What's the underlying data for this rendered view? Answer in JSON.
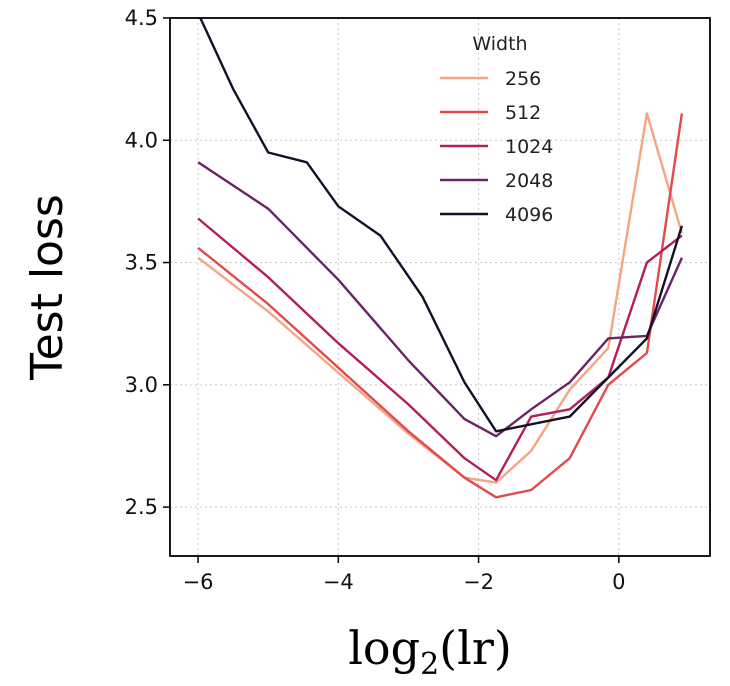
{
  "chart_data": {
    "type": "line",
    "title": "",
    "xlabel_base": "log",
    "xlabel_sub": "2",
    "xlabel_arg": "(lr)",
    "ylabel": "Test loss",
    "xlim": [
      -6.4,
      1.3
    ],
    "ylim": [
      2.3,
      4.5
    ],
    "xticks": [
      -6,
      -4,
      -2,
      0
    ],
    "xtick_labels": [
      "−6",
      "−4",
      "−2",
      "0"
    ],
    "yticks": [
      2.5,
      3.0,
      3.5,
      4.0,
      4.5
    ],
    "ytick_labels": [
      "2.5",
      "3.0",
      "3.5",
      "4.0",
      "4.5"
    ],
    "grid": true,
    "legend": {
      "title": "Width",
      "location": "top-right"
    },
    "series": [
      {
        "name": "256",
        "color": "#f4a582",
        "x": [
          -6,
          -5,
          -4,
          -3,
          -2.2,
          -1.75,
          -1.25,
          -0.7,
          -0.15,
          0.4,
          0.9
        ],
        "y": [
          3.52,
          3.3,
          3.05,
          2.8,
          2.62,
          2.6,
          2.73,
          2.98,
          3.15,
          4.11,
          3.62
        ]
      },
      {
        "name": "512",
        "color": "#e34a4a",
        "x": [
          -6,
          -5,
          -4,
          -3,
          -2.2,
          -1.75,
          -1.25,
          -0.7,
          -0.15,
          0.4,
          0.9
        ],
        "y": [
          3.56,
          3.33,
          3.07,
          2.81,
          2.62,
          2.54,
          2.57,
          2.7,
          3.0,
          3.13,
          4.11
        ]
      },
      {
        "name": "1024",
        "color": "#b41e5a",
        "x": [
          -6,
          -5,
          -4,
          -3,
          -2.2,
          -1.75,
          -1.25,
          -0.7,
          -0.15,
          0.4,
          0.9
        ],
        "y": [
          3.68,
          3.44,
          3.17,
          2.92,
          2.7,
          2.61,
          2.87,
          2.9,
          3.03,
          3.5,
          3.61
        ]
      },
      {
        "name": "2048",
        "color": "#6a2464",
        "x": [
          -6,
          -5,
          -4,
          -3,
          -2.2,
          -1.75,
          -1.25,
          -0.7,
          -0.15,
          0.4,
          0.9
        ],
        "y": [
          3.91,
          3.72,
          3.43,
          3.1,
          2.86,
          2.79,
          2.9,
          3.01,
          3.19,
          3.2,
          3.52
        ]
      },
      {
        "name": "4096",
        "color": "#141028",
        "x": [
          -6,
          -5.5,
          -5,
          -4.45,
          -4,
          -3.4,
          -2.8,
          -2.2,
          -1.75,
          -0.7,
          -0.15,
          0.4,
          0.9
        ],
        "y": [
          4.52,
          4.21,
          3.95,
          3.91,
          3.73,
          3.61,
          3.36,
          3.01,
          2.81,
          2.87,
          3.03,
          3.19,
          3.65
        ]
      }
    ]
  }
}
